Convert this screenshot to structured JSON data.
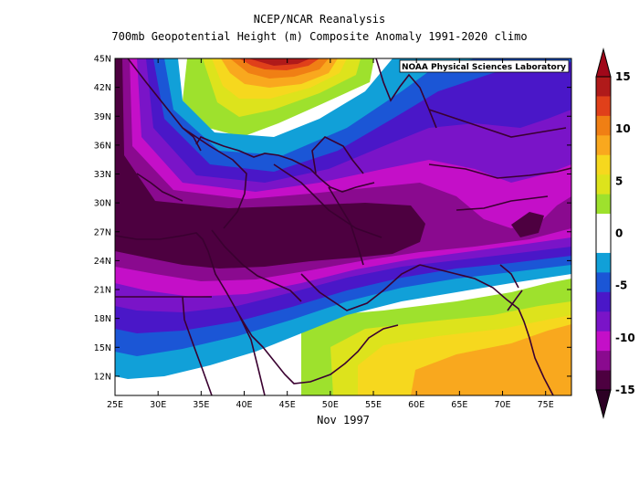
{
  "title_line1": "NCEP/NCAR Reanalysis",
  "title_line2": "700mb Geopotential Height (m) Composite Anomaly 1991-2020 climo",
  "credit": "NOAA Physical Sciences Laboratory",
  "period_label": "Nov 1997",
  "map": {
    "lon_range": [
      25,
      78
    ],
    "lat_range": [
      10,
      45
    ],
    "lon_ticks": [
      "25E",
      "30E",
      "35E",
      "40E",
      "45E",
      "50E",
      "55E",
      "60E",
      "65E",
      "70E",
      "75E"
    ],
    "lat_ticks": [
      "45N",
      "42N",
      "39N",
      "36N",
      "33N",
      "30N",
      "27N",
      "24N",
      "21N",
      "18N",
      "15N",
      "12N"
    ]
  },
  "colorbar": {
    "labels": [
      "15",
      "10",
      "5",
      "0",
      "-5",
      "-10",
      "-15"
    ],
    "colors": [
      "#b01a1a",
      "#e0401a",
      "#f07f14",
      "#f9a81e",
      "#f6d81e",
      "#dde31c",
      "#9ee12d",
      "#ffffff",
      "#ffffff",
      "#11a0d8",
      "#1b56d6",
      "#4a17c8",
      "#7a14c8",
      "#c40fc8",
      "#8a0a8f",
      "#4d0040"
    ]
  }
}
